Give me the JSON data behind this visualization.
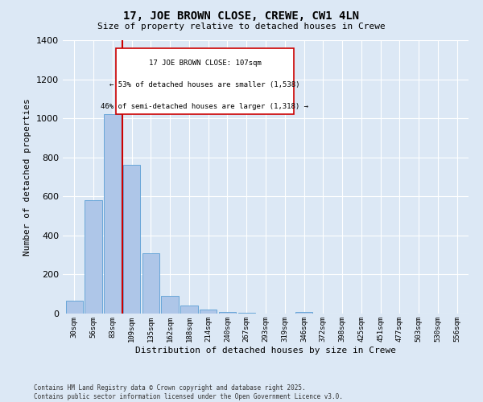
{
  "title": "17, JOE BROWN CLOSE, CREWE, CW1 4LN",
  "subtitle": "Size of property relative to detached houses in Crewe",
  "xlabel": "Distribution of detached houses by size in Crewe",
  "ylabel": "Number of detached properties",
  "categories": [
    "30sqm",
    "56sqm",
    "83sqm",
    "109sqm",
    "135sqm",
    "162sqm",
    "188sqm",
    "214sqm",
    "240sqm",
    "267sqm",
    "293sqm",
    "319sqm",
    "346sqm",
    "372sqm",
    "398sqm",
    "425sqm",
    "451sqm",
    "477sqm",
    "503sqm",
    "530sqm",
    "556sqm"
  ],
  "values": [
    65,
    580,
    1020,
    760,
    310,
    90,
    40,
    20,
    10,
    5,
    2,
    0,
    8,
    0,
    0,
    0,
    0,
    0,
    0,
    0,
    0
  ],
  "bar_color": "#aec6e8",
  "bar_edge_color": "#5a9fd4",
  "vline_color": "#cc0000",
  "vline_position": 2.5,
  "annotation_text_line1": "17 JOE BROWN CLOSE: 107sqm",
  "annotation_text_line2": "← 53% of detached houses are smaller (1,538)",
  "annotation_text_line3": "46% of semi-detached houses are larger (1,318) →",
  "annotation_box_color": "#cc0000",
  "annotation_bg": "#ffffff",
  "ylim": [
    0,
    1400
  ],
  "background_color": "#dce8f5",
  "footer_line1": "Contains HM Land Registry data © Crown copyright and database right 2025.",
  "footer_line2": "Contains public sector information licensed under the Open Government Licence v3.0."
}
